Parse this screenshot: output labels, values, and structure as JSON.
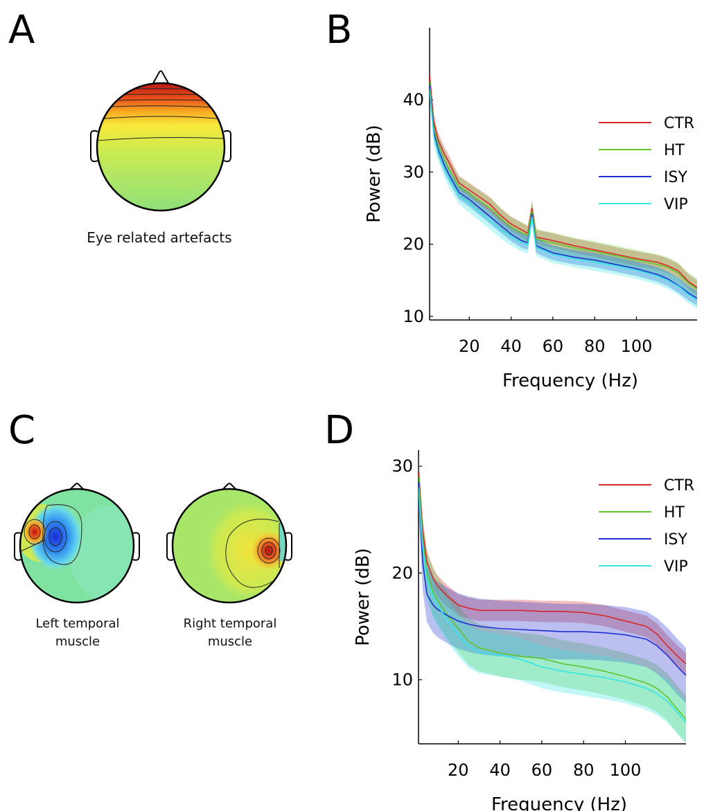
{
  "panels": {
    "A": {
      "letter": "A",
      "caption": "Eye related artefacts"
    },
    "B": {
      "letter": "B"
    },
    "C": {
      "letter": "C",
      "left_caption_1": "Left temporal",
      "left_caption_2": "muscle",
      "right_caption_1": "Right temporal",
      "right_caption_2": "muscle"
    },
    "D": {
      "letter": "D"
    }
  },
  "colors": {
    "CTR": "#d62728",
    "HT": "#5cc72a",
    "ISY": "#1f2fd0",
    "VIP": "#33e6e6"
  },
  "chart_data": [
    {
      "type": "line",
      "panel": "B",
      "xlabel": "Frequency (Hz)",
      "ylabel": "Power (dB)",
      "xlim": [
        1,
        129
      ],
      "ylim": [
        9.5,
        50
      ],
      "xticks": [
        20,
        40,
        60,
        80,
        100
      ],
      "yticks": [
        10,
        20,
        30,
        40
      ],
      "legend": "right",
      "series": [
        {
          "name": "CTR",
          "x": [
            1,
            3,
            5,
            8,
            10,
            15,
            20,
            25,
            30,
            35,
            40,
            45,
            48,
            50,
            52,
            55,
            60,
            70,
            80,
            90,
            100,
            110,
            115,
            120,
            125,
            129
          ],
          "y": [
            43.5,
            37,
            34.5,
            32.5,
            31.5,
            28.5,
            27.5,
            26.5,
            25.5,
            24,
            22.8,
            22,
            21.5,
            25,
            21,
            20.8,
            20.5,
            19.8,
            19.2,
            18.6,
            18,
            17.5,
            17,
            16.3,
            14.8,
            14
          ],
          "band": 1.0
        },
        {
          "name": "HT",
          "x": [
            1,
            3,
            5,
            8,
            10,
            15,
            20,
            25,
            30,
            35,
            40,
            45,
            48,
            50,
            52,
            55,
            60,
            70,
            80,
            90,
            100,
            110,
            115,
            120,
            125,
            129
          ],
          "y": [
            42.5,
            36,
            33.8,
            31.8,
            30.5,
            28,
            27,
            26,
            25,
            23.6,
            22.4,
            21.6,
            21.2,
            24.6,
            20.8,
            20.5,
            20.2,
            19.5,
            19,
            18.4,
            17.8,
            17.2,
            16.8,
            16,
            14.6,
            13.8
          ],
          "band": 1.4
        },
        {
          "name": "ISY",
          "x": [
            1,
            3,
            5,
            8,
            10,
            15,
            20,
            25,
            30,
            35,
            40,
            45,
            48,
            50,
            52,
            55,
            60,
            70,
            80,
            90,
            100,
            110,
            115,
            120,
            125,
            129
          ],
          "y": [
            42,
            35.5,
            33.2,
            31,
            29.8,
            27.2,
            26.2,
            25,
            23.8,
            22.6,
            21.4,
            20.5,
            20.2,
            24.2,
            19.8,
            19.4,
            18.8,
            18.2,
            17.8,
            17.2,
            16.6,
            15.8,
            15.2,
            14.3,
            13.2,
            12.5
          ],
          "band": 1.0
        },
        {
          "name": "VIP",
          "x": [
            1,
            3,
            5,
            8,
            10,
            15,
            20,
            25,
            30,
            35,
            40,
            45,
            48,
            50,
            52,
            55,
            60,
            70,
            80,
            90,
            100,
            110,
            115,
            120,
            125,
            129
          ],
          "y": [
            41.5,
            35,
            32.8,
            30.5,
            29.2,
            26.8,
            25.6,
            24.4,
            23.2,
            22,
            21,
            20.2,
            19.9,
            23.8,
            19.5,
            19.2,
            18.6,
            18,
            17.5,
            17,
            16.4,
            15.6,
            15,
            14.2,
            13,
            12.3
          ],
          "band": 1.2
        }
      ]
    },
    {
      "type": "line",
      "panel": "D",
      "xlabel": "Frequency (Hz)",
      "ylabel": "Power (dB)",
      "xlim": [
        1,
        129
      ],
      "ylim": [
        4,
        31.5
      ],
      "xticks": [
        20,
        40,
        60,
        80,
        100
      ],
      "yticks": [
        10,
        20,
        30
      ],
      "legend": "right",
      "series": [
        {
          "name": "CTR",
          "x": [
            1,
            3,
            5,
            8,
            10,
            15,
            20,
            25,
            30,
            40,
            50,
            60,
            70,
            80,
            90,
            100,
            110,
            115,
            120,
            125,
            129
          ],
          "y": [
            29.5,
            24,
            21,
            19.5,
            18.8,
            17.8,
            17,
            16.7,
            16.5,
            16.5,
            16.5,
            16.4,
            16.4,
            16.3,
            16,
            15.5,
            15,
            14.3,
            13.2,
            12.2,
            11.5
          ],
          "band": 1.0
        },
        {
          "name": "HT",
          "x": [
            1,
            3,
            5,
            8,
            10,
            15,
            20,
            25,
            30,
            40,
            50,
            60,
            70,
            80,
            90,
            100,
            110,
            115,
            120,
            125,
            129
          ],
          "y": [
            29,
            23,
            20,
            18.2,
            17.5,
            16,
            14.8,
            13.6,
            13,
            12.5,
            12.2,
            12,
            11.5,
            11.2,
            10.8,
            10.3,
            9.7,
            9.2,
            8.4,
            7.2,
            6.3
          ],
          "band": 2.2
        },
        {
          "name": "ISY",
          "x": [
            1,
            3,
            5,
            8,
            10,
            15,
            20,
            25,
            30,
            40,
            50,
            60,
            70,
            80,
            90,
            100,
            110,
            115,
            120,
            125,
            129
          ],
          "y": [
            28.5,
            21,
            18,
            17,
            16.6,
            16,
            15.5,
            15.2,
            15,
            14.8,
            14.7,
            14.6,
            14.5,
            14.5,
            14.4,
            14.2,
            13.8,
            13.2,
            12.3,
            11.2,
            10.4
          ],
          "band": 2.6
        },
        {
          "name": "VIP",
          "x": [
            1,
            3,
            5,
            8,
            10,
            15,
            20,
            25,
            30,
            40,
            50,
            60,
            70,
            80,
            90,
            100,
            110,
            115,
            120,
            125,
            129
          ],
          "y": [
            28,
            22.5,
            19.5,
            17.8,
            17,
            15.5,
            14.2,
            13.1,
            12.6,
            12.3,
            11.9,
            11.2,
            10.8,
            10.5,
            10.2,
            9.8,
            9.2,
            8.7,
            8,
            6.9,
            6
          ],
          "band": 2.0
        }
      ]
    }
  ]
}
